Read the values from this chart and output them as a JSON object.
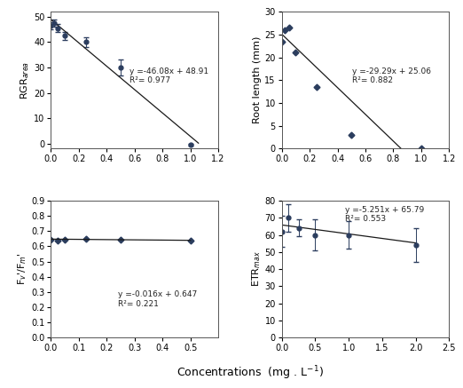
{
  "panel1": {
    "ylabel": "RGR$_{area}$",
    "x": [
      0.0,
      0.02,
      0.05,
      0.1,
      0.25,
      0.5,
      1.0
    ],
    "y": [
      46.5,
      47.5,
      45.5,
      42.5,
      40.0,
      30.0,
      -0.5
    ],
    "yerr": [
      1.5,
      1.5,
      1.5,
      1.5,
      2.0,
      3.0,
      0.5
    ],
    "xlim": [
      0,
      1.2
    ],
    "ylim": [
      -2,
      52
    ],
    "xticks": [
      0,
      0.2,
      0.4,
      0.6,
      0.8,
      1.0,
      1.2
    ],
    "yticks": [
      0,
      10,
      20,
      30,
      40,
      50
    ],
    "eq": "y =-46.08x + 48.91",
    "r2": "R²= 0.977",
    "line_slope": -46.08,
    "line_intercept": 48.91,
    "line_xmax": 1.058
  },
  "panel2": {
    "ylabel": "Root length (mm)",
    "x": [
      0.0,
      0.02,
      0.05,
      0.1,
      0.25,
      0.5,
      1.0
    ],
    "y": [
      23.5,
      26.0,
      26.5,
      21.0,
      13.5,
      3.0,
      0.0
    ],
    "xlim": [
      0,
      1.2
    ],
    "ylim": [
      0,
      30
    ],
    "xticks": [
      0,
      0.2,
      0.4,
      0.6,
      0.8,
      1.0,
      1.2
    ],
    "yticks": [
      0,
      5,
      10,
      15,
      20,
      25,
      30
    ],
    "eq": "y =-29.29x + 25.06",
    "r2": "R²= 0.882",
    "line_slope": -29.29,
    "line_intercept": 25.06,
    "line_xmax": 0.856
  },
  "panel3": {
    "ylabel": "F$_{v}$'/F$_{m}$'",
    "x": [
      0.0,
      0.025,
      0.05,
      0.125,
      0.25,
      0.5
    ],
    "y": [
      0.645,
      0.635,
      0.645,
      0.648,
      0.642,
      0.636
    ],
    "xlim": [
      0,
      0.6
    ],
    "ylim": [
      0,
      0.9
    ],
    "xticks": [
      0,
      0.1,
      0.2,
      0.3,
      0.4,
      0.5
    ],
    "yticks": [
      0,
      0.1,
      0.2,
      0.3,
      0.4,
      0.5,
      0.6,
      0.7,
      0.8,
      0.9
    ],
    "eq": "y =-0.016x + 0.647",
    "r2": "R²= 0.221",
    "line_slope": -0.016,
    "line_intercept": 0.647,
    "line_xmax": 0.5
  },
  "panel4": {
    "ylabel": "ETR$_{max}$",
    "x": [
      0.0,
      0.1,
      0.25,
      0.5,
      1.0,
      2.0
    ],
    "y": [
      62.0,
      70.0,
      64.0,
      60.0,
      60.0,
      54.0
    ],
    "yerr": [
      9.0,
      8.0,
      5.0,
      9.0,
      8.0,
      10.0
    ],
    "xlim": [
      0,
      2.5
    ],
    "ylim": [
      0,
      80
    ],
    "xticks": [
      0,
      0.5,
      1.0,
      1.5,
      2.0,
      2.5
    ],
    "yticks": [
      0,
      10,
      20,
      30,
      40,
      50,
      60,
      70,
      80
    ],
    "eq": "y =-5.251x + 65.79",
    "r2": "R²= 0.553",
    "line_slope": -5.251,
    "line_intercept": 65.79,
    "line_xmax": 2.0
  },
  "xlabel": "Concentrations  (mg . L$^{-1}$)",
  "point_color": "#2b3d5e",
  "line_color": "#1a1a1a",
  "bg_color": "#ffffff",
  "fontsize_label": 8,
  "fontsize_tick": 7,
  "fontsize_eq": 6.5
}
